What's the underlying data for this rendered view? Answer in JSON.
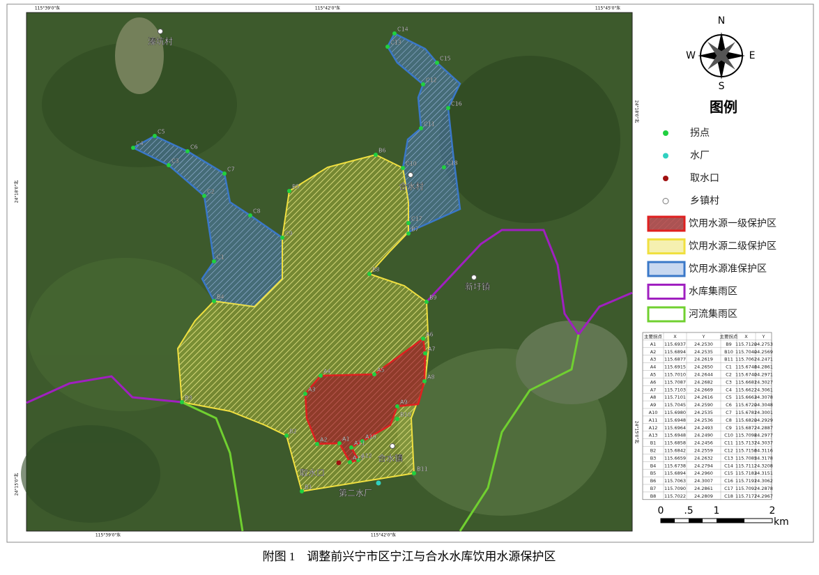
{
  "map": {
    "grid_labels": {
      "top": [
        "115°39'0\"东",
        "115°42'0\"东",
        "115°45'0\"东"
      ],
      "bottom": [
        "115°39'0\"东",
        "115°42'0\"东"
      ],
      "left": [
        "24°18'0\"北",
        "24°15'0\"北"
      ],
      "right": [
        "24°18'0\"北",
        "24°15'0\"北"
      ]
    },
    "points": [
      "C14",
      "C13",
      "C15",
      "C12",
      "C16",
      "C11",
      "C10",
      "C18",
      "C17",
      "B7",
      "B6",
      "B5",
      "C9",
      "B8",
      "B9",
      "B4",
      "C1",
      "C2",
      "C8",
      "C7",
      "C6",
      "C5",
      "C4",
      "C3",
      "B3",
      "B2",
      "B1",
      "B10",
      "B11",
      "A1",
      "A2",
      "A3",
      "A4",
      "A5",
      "A6",
      "A7",
      "A8",
      "A9",
      "A10",
      "A11",
      "A12",
      "A13"
    ],
    "places": [
      "溱坑村",
      "合水村",
      "新圩镇",
      "合水镇",
      "取水口",
      "第二水厂"
    ]
  },
  "compass": {
    "n": "N",
    "s": "S",
    "e": "E",
    "w": "W"
  },
  "legend": {
    "title": "图例",
    "items": [
      "拐点",
      "水厂",
      "取水口",
      "乡镇村",
      "饮用水源一级保护区",
      "饮用水源二级保护区",
      "饮用水源准保护区",
      "水库集雨区",
      "河流集雨区"
    ]
  },
  "table": {
    "header": [
      "主要拐点",
      "X",
      "Y",
      "主要拐点",
      "X",
      "Y"
    ],
    "rows": [
      [
        "A1",
        "115.6937",
        "24.2530",
        "B9",
        "115.7120",
        "24.2753"
      ],
      [
        "A2",
        "115.6894",
        "24.2535",
        "B10",
        "115.7040",
        "24.2569"
      ],
      [
        "A3",
        "115.6877",
        "24.2619",
        "B11",
        "115.7062",
        "24.2471"
      ],
      [
        "A4",
        "115.6915",
        "24.2650",
        "C1",
        "115.6746",
        "24.2861"
      ],
      [
        "A5",
        "115.7010",
        "24.2644",
        "C2",
        "115.6740",
        "24.2971"
      ],
      [
        "A6",
        "115.7087",
        "24.2682",
        "C3",
        "115.6681",
        "24.3027"
      ],
      [
        "A7",
        "115.7103",
        "24.2669",
        "C4",
        "115.6622",
        "24.3061"
      ],
      [
        "A8",
        "115.7101",
        "24.2616",
        "C5",
        "115.6663",
        "24.3078"
      ],
      [
        "A9",
        "115.7045",
        "24.2590",
        "C6",
        "115.6720",
        "24.3048"
      ],
      [
        "A10",
        "115.6980",
        "24.2535",
        "C7",
        "115.6781",
        "24.3001"
      ],
      [
        "A11",
        "115.6948",
        "24.2536",
        "C8",
        "115.6820",
        "24.2929"
      ],
      [
        "A12",
        "115.6964",
        "24.2493",
        "C9",
        "115.6872",
        "24.2887"
      ],
      [
        "A13",
        "115.6948",
        "24.2490",
        "C10",
        "115.7098",
        "24.2977"
      ],
      [
        "B1",
        "115.6858",
        "24.2456",
        "C11",
        "115.7137",
        "24.3037"
      ],
      [
        "B2",
        "115.6842",
        "24.2559",
        "C12",
        "115.7156",
        "24.3116"
      ],
      [
        "B3",
        "115.6659",
        "24.2632",
        "C13",
        "115.7085",
        "24.3178"
      ],
      [
        "B4",
        "115.6738",
        "24.2794",
        "C14",
        "115.7112",
        "24.3208"
      ],
      [
        "B5",
        "115.6894",
        "24.2960",
        "C15",
        "115.7183",
        "24.3151"
      ],
      [
        "B6",
        "115.7063",
        "24.3007",
        "C16",
        "115.7191",
        "24.3062"
      ],
      [
        "B7",
        "115.7090",
        "24.2861",
        "C17",
        "115.7092",
        "24.2878"
      ],
      [
        "B8",
        "115.7022",
        "24.2809",
        "C18",
        "115.7177",
        "24.2967"
      ]
    ]
  },
  "scale": {
    "labels": [
      "0",
      ".5",
      "1",
      "2"
    ],
    "unit": "km"
  },
  "caption": "附图 1　调整前兴宁市区宁江与合水水库饮用水源保护区"
}
